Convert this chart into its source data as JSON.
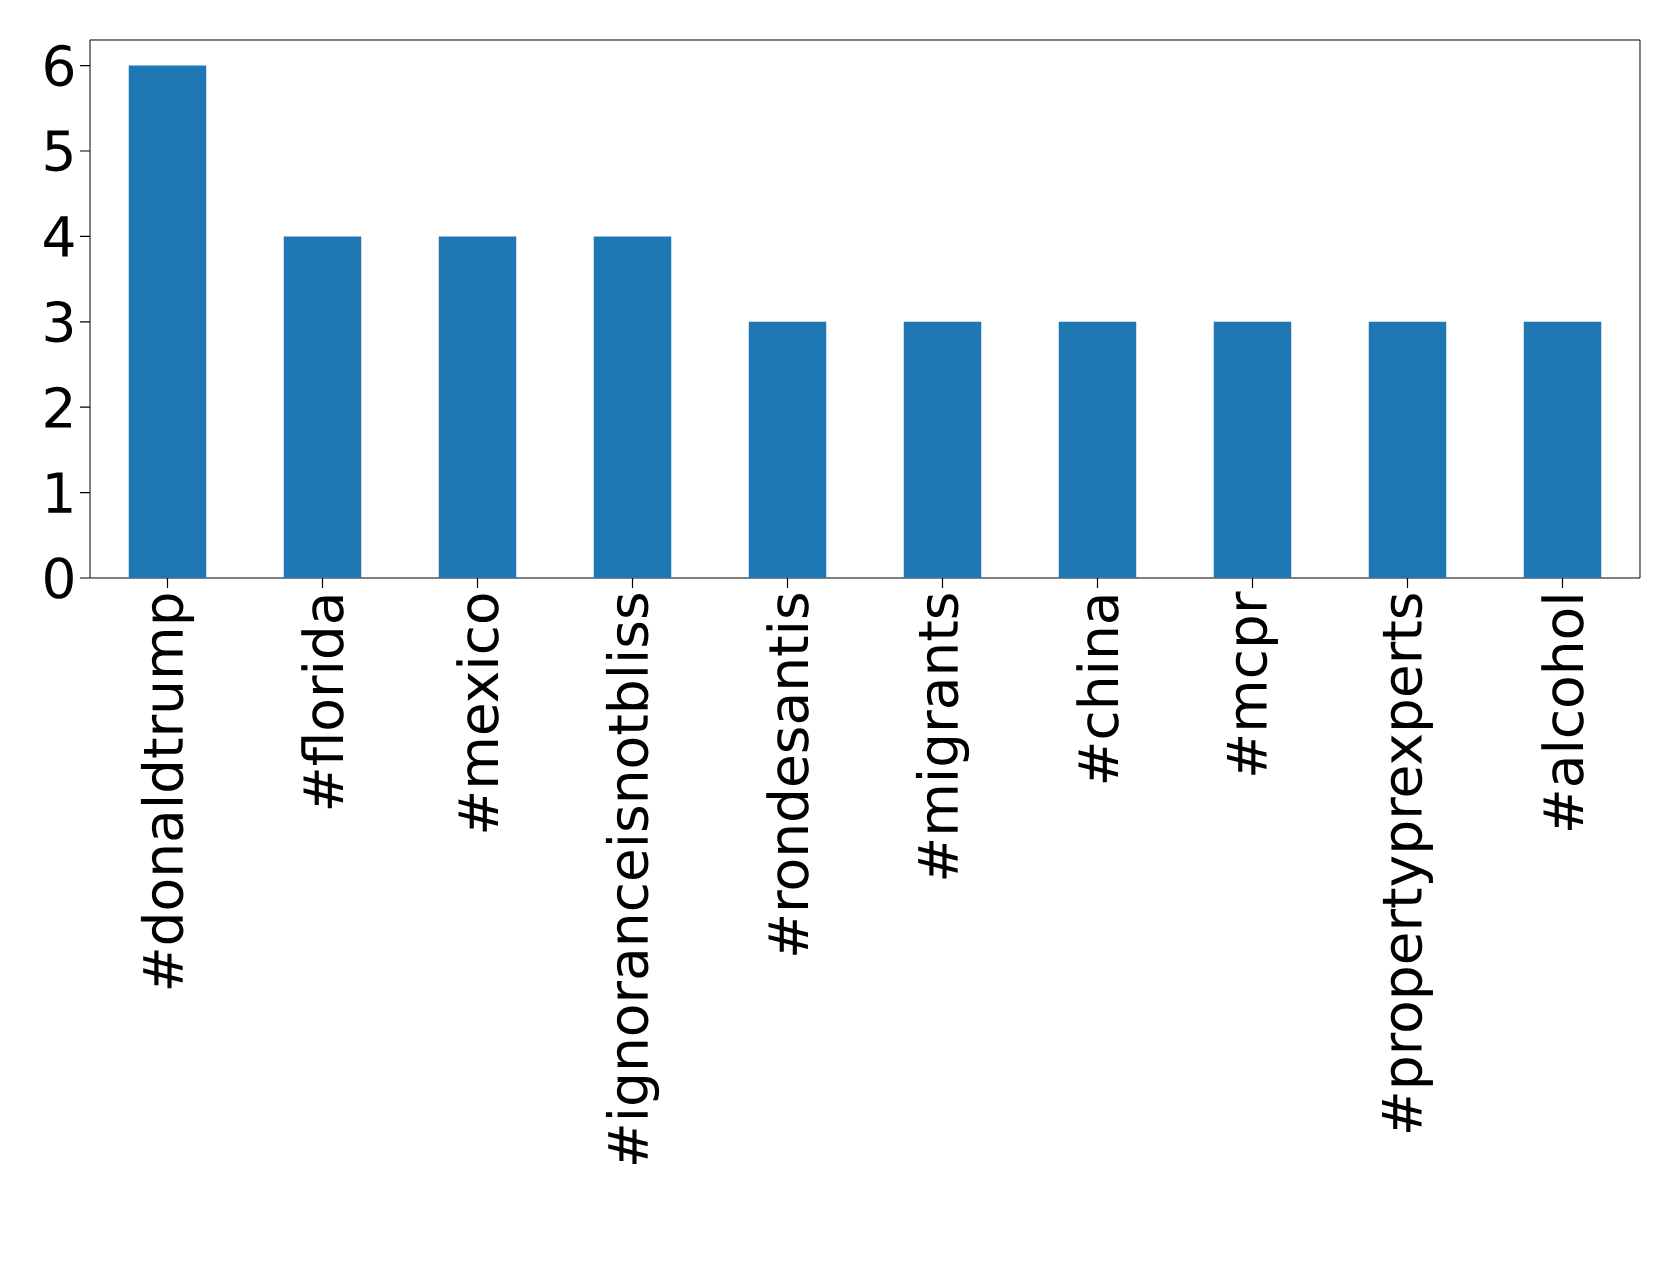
{
  "chart_data": {
    "type": "bar",
    "categories": [
      "#donaldtrump",
      "#florida",
      "#mexico",
      "#ignoranceisnotbliss",
      "#rondesantis",
      "#migrants",
      "#china",
      "#mcpr",
      "#propertyprexperts",
      "#alcohol"
    ],
    "values": [
      6,
      4,
      4,
      4,
      3,
      3,
      3,
      3,
      3,
      3
    ],
    "color": "#1f77b4",
    "ylim": [
      0,
      6.3
    ],
    "yticks": [
      0,
      1,
      2,
      3,
      4,
      5,
      6
    ],
    "grid": false
  }
}
